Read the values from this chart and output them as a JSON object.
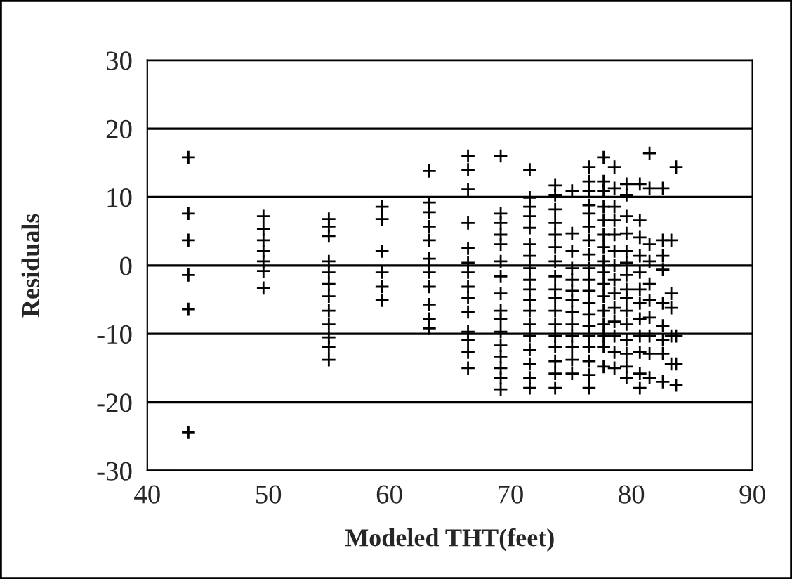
{
  "chart_data": {
    "type": "scatter",
    "xlabel": "Modeled THT(feet)",
    "ylabel": "Residuals",
    "xlim": [
      40,
      90
    ],
    "xticks": [
      40,
      50,
      60,
      70,
      80,
      90
    ],
    "ylim": [
      -30,
      30
    ],
    "yticks": [
      -30,
      -20,
      -10,
      0,
      10,
      20,
      30
    ],
    "grid": "y",
    "marker": "cross",
    "series": [
      {
        "color": "#000000",
        "x": [
          43.4,
          43.4,
          43.4,
          43.4,
          43.4,
          43.4,
          49.6,
          49.6,
          49.6,
          49.6,
          49.6,
          49.6,
          49.6,
          55.0,
          55.0,
          55.0,
          55.0,
          55.0,
          55.0,
          55.0,
          55.0,
          55.0,
          55.0,
          55.0,
          55.0,
          59.4,
          59.4,
          59.4,
          59.4,
          59.4,
          59.4,
          63.3,
          63.3,
          63.3,
          63.3,
          63.3,
          63.3,
          63.3,
          63.3,
          63.3,
          63.3,
          63.3,
          66.5,
          66.5,
          66.5,
          66.5,
          66.5,
          66.5,
          66.5,
          66.5,
          66.5,
          66.5,
          66.5,
          66.5,
          66.5,
          66.5,
          69.2,
          69.2,
          69.2,
          69.2,
          69.2,
          69.2,
          69.2,
          69.2,
          69.2,
          69.2,
          69.2,
          69.2,
          69.2,
          69.2,
          69.2,
          69.2,
          71.6,
          71.6,
          71.6,
          71.6,
          71.6,
          71.6,
          71.6,
          71.6,
          71.6,
          71.6,
          71.6,
          71.6,
          71.6,
          71.6,
          71.6,
          71.6,
          71.6,
          71.6,
          73.7,
          73.7,
          73.7,
          73.7,
          73.7,
          73.7,
          73.7,
          73.7,
          73.7,
          73.7,
          73.7,
          73.7,
          73.7,
          73.7,
          73.7,
          73.7,
          73.7,
          75.1,
          75.1,
          75.1,
          75.1,
          75.1,
          75.1,
          75.1,
          75.1,
          75.1,
          75.1,
          75.1,
          75.1,
          75.1,
          76.5,
          76.5,
          76.5,
          76.5,
          76.5,
          76.5,
          76.5,
          76.5,
          76.5,
          76.5,
          76.5,
          76.5,
          76.5,
          76.5,
          76.5,
          76.5,
          76.5,
          76.5,
          76.5,
          77.7,
          77.7,
          77.7,
          77.7,
          77.7,
          77.7,
          77.7,
          77.7,
          77.7,
          77.7,
          77.7,
          77.7,
          77.7,
          77.7,
          77.7,
          77.7,
          78.6,
          78.6,
          78.6,
          78.6,
          78.6,
          78.6,
          78.6,
          78.6,
          78.6,
          78.6,
          78.6,
          78.6,
          78.6,
          78.6,
          79.6,
          79.6,
          79.6,
          79.6,
          79.6,
          79.6,
          79.6,
          79.6,
          79.6,
          79.6,
          79.6,
          79.6,
          79.6,
          79.6,
          79.6,
          80.7,
          80.7,
          80.7,
          80.7,
          80.7,
          80.7,
          80.7,
          80.7,
          80.7,
          80.7,
          80.7,
          80.7,
          81.5,
          81.5,
          81.5,
          81.5,
          81.5,
          81.5,
          81.5,
          81.5,
          81.5,
          81.5,
          82.6,
          82.6,
          82.6,
          82.6,
          82.6,
          82.6,
          82.6,
          82.6,
          82.6,
          83.3,
          83.3,
          83.3,
          83.3,
          83.3,
          83.7,
          83.7,
          83.7,
          83.7
        ],
        "values": [
          15.8,
          7.6,
          3.7,
          -1.4,
          -6.4,
          -24.4,
          7.2,
          5.3,
          3.7,
          2.1,
          0.6,
          -0.8,
          -3.3,
          6.8,
          5.7,
          4.3,
          0.6,
          -1.0,
          -2.7,
          -4.5,
          -6.6,
          -8.6,
          -10.5,
          -11.9,
          -13.8,
          8.6,
          6.8,
          2.1,
          -1.0,
          -3.1,
          -5.1,
          13.8,
          9.2,
          7.8,
          5.7,
          3.7,
          1.0,
          -1.0,
          -3.1,
          -5.7,
          -7.8,
          -9.2,
          16.0,
          14.0,
          11.1,
          6.2,
          2.5,
          0.4,
          -1.0,
          -3.1,
          -4.7,
          -6.8,
          -9.7,
          -10.9,
          -12.7,
          -15.0,
          16.0,
          7.6,
          6.2,
          4.5,
          3.1,
          0.6,
          -1.6,
          -4.1,
          -6.6,
          -7.8,
          -9.7,
          -11.7,
          -13.3,
          -15.0,
          -16.4,
          -18.1,
          14.0,
          9.9,
          8.6,
          7.2,
          5.5,
          3.1,
          1.4,
          -0.4,
          -2.1,
          -3.5,
          -5.1,
          -6.6,
          -8.6,
          -10.3,
          -12.3,
          -14.4,
          -16.4,
          -17.9,
          11.7,
          10.3,
          8.2,
          6.2,
          4.5,
          2.7,
          0.6,
          -1.6,
          -3.5,
          -4.7,
          -6.6,
          -8.6,
          -10.3,
          -11.9,
          -14.0,
          -15.8,
          -17.9,
          10.9,
          4.7,
          2.1,
          -0.4,
          -2.1,
          -3.7,
          -5.1,
          -6.8,
          -8.6,
          -10.3,
          -11.9,
          -13.8,
          -15.8,
          14.4,
          12.3,
          10.9,
          8.8,
          7.6,
          5.7,
          3.7,
          1.6,
          -0.4,
          -2.1,
          -3.7,
          -5.5,
          -7.2,
          -8.8,
          -10.3,
          -11.9,
          -14.0,
          -16.0,
          -17.9,
          15.8,
          12.3,
          10.9,
          8.6,
          6.6,
          4.5,
          2.7,
          0.6,
          -1.0,
          -2.7,
          -4.5,
          -6.6,
          -8.6,
          -10.3,
          -11.9,
          -14.8,
          14.4,
          11.3,
          8.6,
          6.6,
          4.5,
          2.1,
          0,
          -2.1,
          -4.1,
          -6.2,
          -8.2,
          -10.3,
          -12.7,
          -15.0,
          11.9,
          10.3,
          7.2,
          4.7,
          2.1,
          0.4,
          -1.4,
          -3.5,
          -4.7,
          -6.6,
          -8.6,
          -10.9,
          -12.9,
          -14.8,
          -16.4,
          11.9,
          6.6,
          4.1,
          1.4,
          -1.0,
          -3.5,
          -5.5,
          -7.8,
          -10.3,
          -12.7,
          -15.8,
          -17.9,
          16.4,
          11.3,
          3.1,
          0.6,
          -2.7,
          -5.1,
          -7.6,
          -10.3,
          -12.9,
          -16.4,
          11.3,
          3.7,
          1.4,
          -0.6,
          -5.5,
          -8.8,
          -10.9,
          -12.9,
          -17.0,
          3.7,
          -4.1,
          -6.2,
          -10.3,
          -14.4,
          14.4,
          -10.3,
          -14.4,
          -17.5
        ]
      }
    ]
  }
}
